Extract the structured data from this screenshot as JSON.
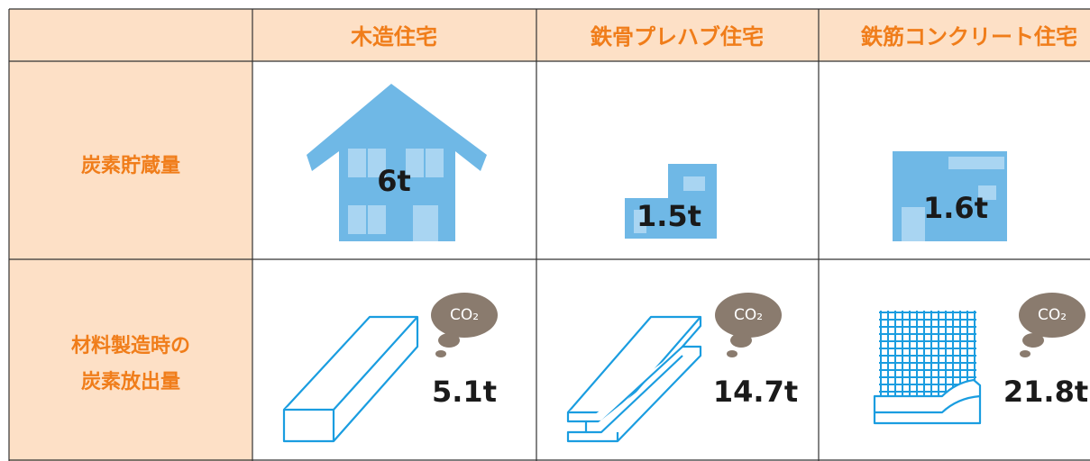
{
  "table": {
    "columns": [
      "木造住宅",
      "鉄骨プレハブ住宅",
      "鉄筋コンクリート住宅"
    ],
    "rows": [
      {
        "label": [
          "炭素貯蔵量"
        ],
        "values": [
          "6t",
          "1.5t",
          "1.6t"
        ]
      },
      {
        "label": [
          "材料製造時の",
          "炭素放出量"
        ],
        "values": [
          "5.1t",
          "14.7t",
          "21.8t"
        ]
      }
    ],
    "co2_label": "CO₂"
  }
}
